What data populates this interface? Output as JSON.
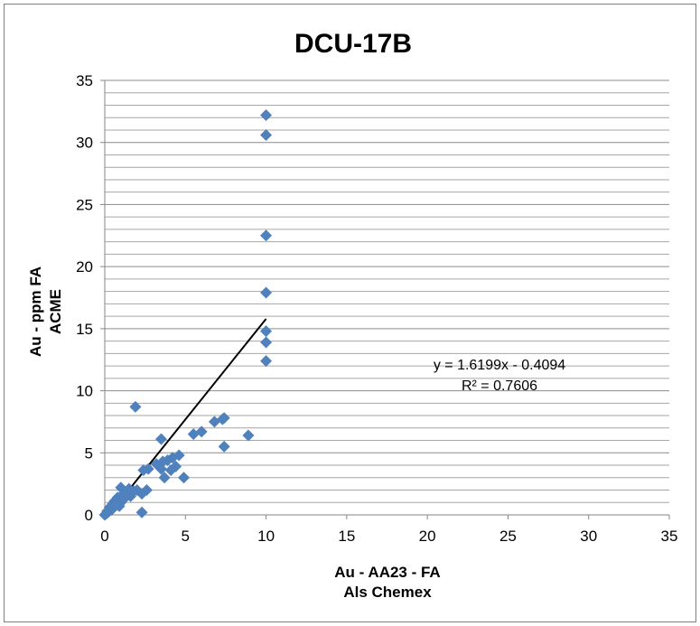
{
  "chart_data": {
    "type": "scatter",
    "title": "DCU-17B",
    "xlabel": [
      "Au - AA23 - FA",
      "Als Chemex"
    ],
    "ylabel": [
      "Au - ppm FA",
      "ACME"
    ],
    "xlim": [
      0,
      35
    ],
    "ylim": [
      0,
      35
    ],
    "xticks": [
      "0",
      "5",
      "10",
      "15",
      "20",
      "25",
      "30",
      "35"
    ],
    "yticks": [
      "0",
      "5",
      "10",
      "15",
      "20",
      "25",
      "30",
      "35"
    ],
    "grid": "horizontal",
    "marker_color": "#4f81bd",
    "trendline_color": "#000000",
    "trendline": {
      "slope": 1.6199,
      "intercept": -0.4094,
      "x_range": [
        0.25,
        10
      ],
      "equation": "y = 1.6199x - 0.4094",
      "r_squared": "R² = 0.7606"
    },
    "points": [
      [
        10,
        32.2
      ],
      [
        10,
        30.6
      ],
      [
        10,
        22.5
      ],
      [
        10,
        17.9
      ],
      [
        10,
        14.8
      ],
      [
        10,
        13.9
      ],
      [
        10,
        12.4
      ],
      [
        1.9,
        8.7
      ],
      [
        7.4,
        7.8
      ],
      [
        7.3,
        7.7
      ],
      [
        6.8,
        7.5
      ],
      [
        6.0,
        6.7
      ],
      [
        5.5,
        6.5
      ],
      [
        8.9,
        6.4
      ],
      [
        3.5,
        6.1
      ],
      [
        7.4,
        5.5
      ],
      [
        4.6,
        4.8
      ],
      [
        4.2,
        4.6
      ],
      [
        3.9,
        4.4
      ],
      [
        3.6,
        4.3
      ],
      [
        3.2,
        4.1
      ],
      [
        4.4,
        3.9
      ],
      [
        3.5,
        3.7
      ],
      [
        4.1,
        3.6
      ],
      [
        2.4,
        3.6
      ],
      [
        2.7,
        3.7
      ],
      [
        3.7,
        3.0
      ],
      [
        4.9,
        3.0
      ],
      [
        1.0,
        2.2
      ],
      [
        1.5,
        2.1
      ],
      [
        2.0,
        2.0
      ],
      [
        2.6,
        2.0
      ],
      [
        1.8,
        1.9
      ],
      [
        1.3,
        1.8
      ],
      [
        2.3,
        1.7
      ],
      [
        1.1,
        1.6
      ],
      [
        1.6,
        1.5
      ],
      [
        0.8,
        1.4
      ],
      [
        1.2,
        1.3
      ],
      [
        0.6,
        1.1
      ],
      [
        1.0,
        1.0
      ],
      [
        0.5,
        0.9
      ],
      [
        0.7,
        0.8
      ],
      [
        0.3,
        0.6
      ],
      [
        0.9,
        0.7
      ],
      [
        0.4,
        0.4
      ],
      [
        0.2,
        0.2
      ],
      [
        0.1,
        0.1
      ],
      [
        0.0,
        0.0
      ],
      [
        0.15,
        0.3
      ],
      [
        0.5,
        0.5
      ],
      [
        2.3,
        0.2
      ]
    ]
  }
}
